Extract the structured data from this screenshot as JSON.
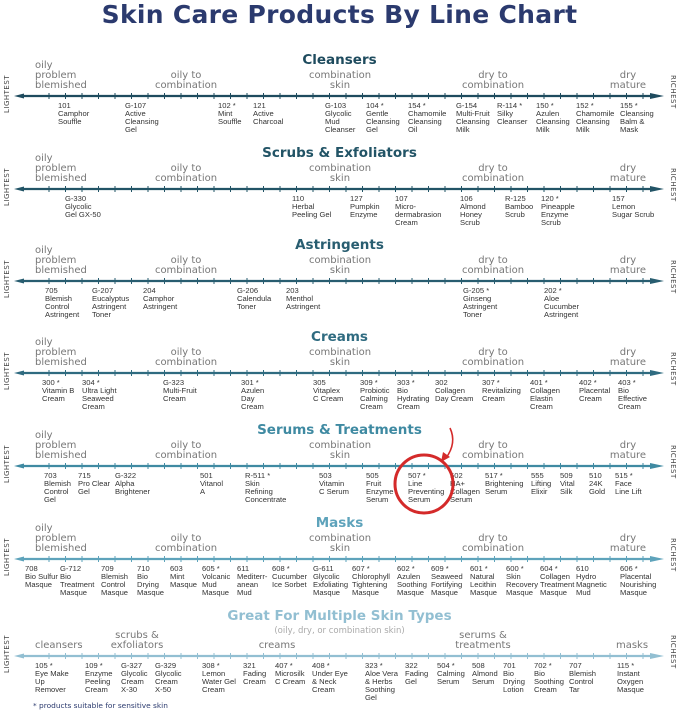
{
  "title": "Skin Care Products By Line Chart",
  "axis_labels": {
    "left": "LIGHTEST",
    "right": "RICHEST"
  },
  "skin_types": [
    "oily\nproblem\nblemished",
    "oily to\ncombination",
    "combination\nskin",
    "dry to\ncombination",
    "dry\nmature"
  ],
  "sections": [
    {
      "title": "Cleansers",
      "color": "#1e4b5e",
      "products": [
        {
          "code": "101",
          "name": "Camphor\nSouffle"
        },
        {
          "code": "G-107",
          "name": "Active\nCleansing\nGel"
        },
        {
          "code": "102 *",
          "name": "Mint\nSouffle"
        },
        {
          "code": "121",
          "name": "Active\nCharcoal"
        },
        {
          "code": "G-103",
          "name": "Glycolic\nMud\nCleanser"
        },
        {
          "code": "104 *",
          "name": "Gentle\nCleansing\nGel"
        },
        {
          "code": "154 *",
          "name": "Chamomile\nCleansing\nOil"
        },
        {
          "code": "G-154",
          "name": "Multi-Fruit\nCleansing\nMilk"
        },
        {
          "code": "R-114 *",
          "name": "Silky\nCleanser"
        },
        {
          "code": "150 *",
          "name": "Azulen\nCleansing\nMilk"
        },
        {
          "code": "152 *",
          "name": "Chamomile\nCleansing\nMilk"
        },
        {
          "code": "155 *",
          "name": "Cleansing\nBalm &\nMask"
        }
      ]
    },
    {
      "title": "Scrubs & Exfoliators",
      "color": "#225466",
      "products": [
        {
          "code": "G-330",
          "name": "Glycolic\nGel GX-50"
        },
        {
          "code": "110",
          "name": "Herbal\nPeeling Gel"
        },
        {
          "code": "127",
          "name": "Pumpkin\nEnzyme"
        },
        {
          "code": "107",
          "name": "Micro-\ndermabrasion\nCream"
        },
        {
          "code": "106",
          "name": "Almond\nHoney\nScrub"
        },
        {
          "code": "R-125",
          "name": "Bamboo\nScrub"
        },
        {
          "code": "120 *",
          "name": "Pineapple\nEnzyme\nScrub"
        },
        {
          "code": "157",
          "name": "Lemon\nSugar Scrub"
        }
      ]
    },
    {
      "title": "Astringents",
      "color": "#285d70",
      "products": [
        {
          "code": "705",
          "name": "Blemish\nControl\nAstringent"
        },
        {
          "code": "G-207",
          "name": "Eucalyptus\nAstringent\nToner"
        },
        {
          "code": "204",
          "name": "Camphor\nAstringent"
        },
        {
          "code": "G-206",
          "name": "Calendula\nToner"
        },
        {
          "code": "203",
          "name": "Menthol\nAstringent"
        },
        {
          "code": "G-205 *",
          "name": "Ginseng\nAstringent\nToner"
        },
        {
          "code": "202 *",
          "name": "Aloe\nCucumber\nAstringent"
        }
      ]
    },
    {
      "title": "Creams",
      "color": "#2f6b80",
      "products": [
        {
          "code": "300 *",
          "name": "Vitamin B\nCream"
        },
        {
          "code": "304 *",
          "name": "Ultra Light\nSeaweed\nCream"
        },
        {
          "code": "G-323",
          "name": "Multi-Fruit\nCream"
        },
        {
          "code": "301 *",
          "name": "Azulen\nDay\nCream"
        },
        {
          "code": "305",
          "name": "Vitaplex\nC Cream"
        },
        {
          "code": "309 *",
          "name": "Probiotic\nCalming\nCream"
        },
        {
          "code": "303 *",
          "name": "Bio\nHydrating\nCream"
        },
        {
          "code": "302",
          "name": "Collagen\nDay Cream"
        },
        {
          "code": "307 *",
          "name": "Revitalizing\nCream"
        },
        {
          "code": "401 *",
          "name": "Collagen\nElastin\nCream"
        },
        {
          "code": "402 *",
          "name": "Placental\nCream"
        },
        {
          "code": "403 *",
          "name": "Bio\nEffective\nCream"
        }
      ]
    },
    {
      "title": "Serums & Treatments",
      "color": "#3f8aa2",
      "products": [
        {
          "code": "703",
          "name": "Blemish\nControl\nGel"
        },
        {
          "code": "715",
          "name": "Pro Clear\nGel"
        },
        {
          "code": "G-322",
          "name": "Alpha\nBrightener"
        },
        {
          "code": "501",
          "name": "Vitanol\nA"
        },
        {
          "code": "R-511 *",
          "name": "Skin\nRefining\nConcentrate"
        },
        {
          "code": "503",
          "name": "Vitamin\nC Serum"
        },
        {
          "code": "505",
          "name": "Fruit\nEnzyme\nSerum"
        },
        {
          "code": "507 *",
          "name": "Line\nPreventing\nSerum"
        },
        {
          "code": "502",
          "name": "HA+\nCollagen\nSerum"
        },
        {
          "code": "517 *",
          "name": "Brightening\nSerum"
        },
        {
          "code": "555",
          "name": "Lifting\nElixir"
        },
        {
          "code": "509",
          "name": "Vital\nSilk"
        },
        {
          "code": "510",
          "name": "24K\nGold"
        },
        {
          "code": "515 *",
          "name": "Face\nLine Lift"
        }
      ]
    },
    {
      "title": "Masks",
      "color": "#5ea3bb",
      "products": [
        {
          "code": "708",
          "name": "Bio Sulfur\nMasque"
        },
        {
          "code": "G-712",
          "name": "Bio\nTreatment\nMasque"
        },
        {
          "code": "709",
          "name": "Blemish\nControl\nMasque"
        },
        {
          "code": "710",
          "name": "Bio\nDrying\nMasque"
        },
        {
          "code": "603",
          "name": "Mint\nMasque"
        },
        {
          "code": "605 *",
          "name": "Volcanic\nMud\nMasque"
        },
        {
          "code": "611",
          "name": "Mediterr-\nanean\nMud"
        },
        {
          "code": "608 *",
          "name": "Cucumber\nIce Sorbet"
        },
        {
          "code": "G-611",
          "name": "Glycolic\nExfoliating\nMasque"
        },
        {
          "code": "607 *",
          "name": "Chlorophyll\nTightening\nMasque"
        },
        {
          "code": "602 *",
          "name": "Azulen\nSoothing\nMasque"
        },
        {
          "code": "609 *",
          "name": "Seaweed\nFortifying\nMasque"
        },
        {
          "code": "601 *",
          "name": "Natural\nLecithin\nMasque"
        },
        {
          "code": "600 *",
          "name": "Skin\nRecovery\nMasque"
        },
        {
          "code": "604 *",
          "name": "Collagen\nTreatment\nMasque"
        },
        {
          "code": "610",
          "name": "Hydro\nMagnetic\nMud"
        },
        {
          "code": "606 *",
          "name": "Placental\nNourishing\nMasque"
        }
      ]
    }
  ],
  "multi": {
    "title": "Great For Multiple Skin Types",
    "subtitle": "(oily, dry, or combination skin)",
    "color": "#92bfd2",
    "categories": [
      "cleansers",
      "scrubs &\nexfoliators",
      "creams",
      "serums &\ntreatments",
      "masks"
    ],
    "products": [
      {
        "code": "105 *",
        "name": "Eye Make\nUp\nRemover"
      },
      {
        "code": "109 *",
        "name": "Enzyme\nPeeling\nCream"
      },
      {
        "code": "G-327",
        "name": "Glycolic\nCream\nX-30"
      },
      {
        "code": "G-329",
        "name": "Glycolic\nCream\nX-50"
      },
      {
        "code": "308 *",
        "name": "Lemon\nWater Gel\nCream"
      },
      {
        "code": "321",
        "name": "Fading\nCream"
      },
      {
        "code": "407 *",
        "name": "Microsilk\nC Cream"
      },
      {
        "code": "408 *",
        "name": "Under Eye\n& Neck\nCream"
      },
      {
        "code": "323 *",
        "name": "Aloe Vera\n& Herbs\nSoothing\nGel"
      },
      {
        "code": "322",
        "name": "Fading\nGel"
      },
      {
        "code": "504 *",
        "name": "Calming\nSerum"
      },
      {
        "code": "508",
        "name": "Almond\nSerum"
      },
      {
        "code": "701",
        "name": "Bio\nDrying\nLotion"
      },
      {
        "code": "702 *",
        "name": "Bio\nSoothing\nCream"
      },
      {
        "code": "707",
        "name": "Blemish\nControl\nTar"
      },
      {
        "code": "115 *",
        "name": "Instant\nOxygen\nMasque"
      }
    ]
  },
  "footnote": "* products suitable for sensitive skin",
  "highlight": {
    "product": "507 *",
    "color": "#d42a2a"
  }
}
